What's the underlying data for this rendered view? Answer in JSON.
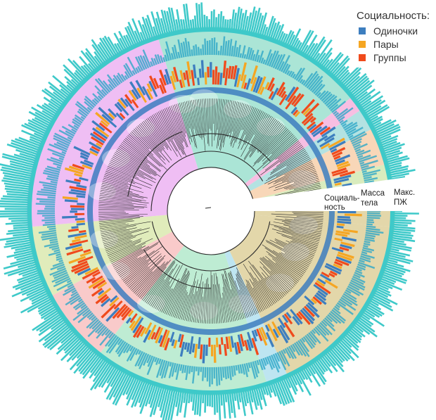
{
  "legend": {
    "title": "Социальность:",
    "items": [
      {
        "id": "solitary",
        "label": "Одиночки",
        "color": "#3d7ebf"
      },
      {
        "id": "pairs",
        "label": "Пары",
        "color": "#f5a623"
      },
      {
        "id": "groups",
        "label": "Группы",
        "color": "#f04a1c"
      }
    ]
  },
  "track_labels": {
    "sociality": [
      "Социаль-",
      "ность"
    ],
    "body_mass": [
      "Масса",
      "тела"
    ],
    "brain": [
      "Макс.",
      "ПЖ"
    ]
  },
  "clades": [
    {
      "name": "rodents-lagomorphs",
      "color": "#e9a8f0",
      "silhouettes": [
        "hare-silhouette",
        "rodent-silhouette",
        "beaver-silhouette",
        "rat-silhouette"
      ]
    },
    {
      "name": "primates",
      "color": "#8fdcc8",
      "silhouettes": [
        "human-silhouette",
        "gorilla-silhouette",
        "monkey-silhouette"
      ]
    },
    {
      "name": "small-clade-a",
      "color": "#f4a8d8",
      "silhouettes": []
    },
    {
      "name": "small-clade-b",
      "color": "#9ad8d8",
      "silhouettes": []
    },
    {
      "name": "small-clade-c",
      "color": "#f5c9a0",
      "silhouettes": [
        "shrew-silhouette"
      ]
    },
    {
      "name": "small-clade-d",
      "color": "#cce6a8",
      "silhouettes": [
        "pangolin-silhouette"
      ]
    },
    {
      "name": "carnivores",
      "color": "#d9c98e",
      "silhouettes": [
        "wolf-silhouette",
        "bear-silhouette",
        "fox-silhouette"
      ]
    },
    {
      "name": "perissodactyls",
      "color": "#a8dcec",
      "silhouettes": [
        "horse-silhouette"
      ]
    },
    {
      "name": "ungulates",
      "color": "#a8e6c4",
      "silhouettes": [
        "goat-silhouette",
        "boar-silhouette"
      ]
    },
    {
      "name": "bats",
      "color": "#f7b8b8",
      "silhouettes": [
        "bat-silhouette"
      ]
    },
    {
      "name": "xenarthra",
      "color": "#d6e6a4",
      "silhouettes": [
        "armadillo-silhouette"
      ]
    }
  ],
  "colors": {
    "outer_bars": "#3ec9c9",
    "inner_bars": "#2fa8c8",
    "tree": "#2a2a2a"
  }
}
